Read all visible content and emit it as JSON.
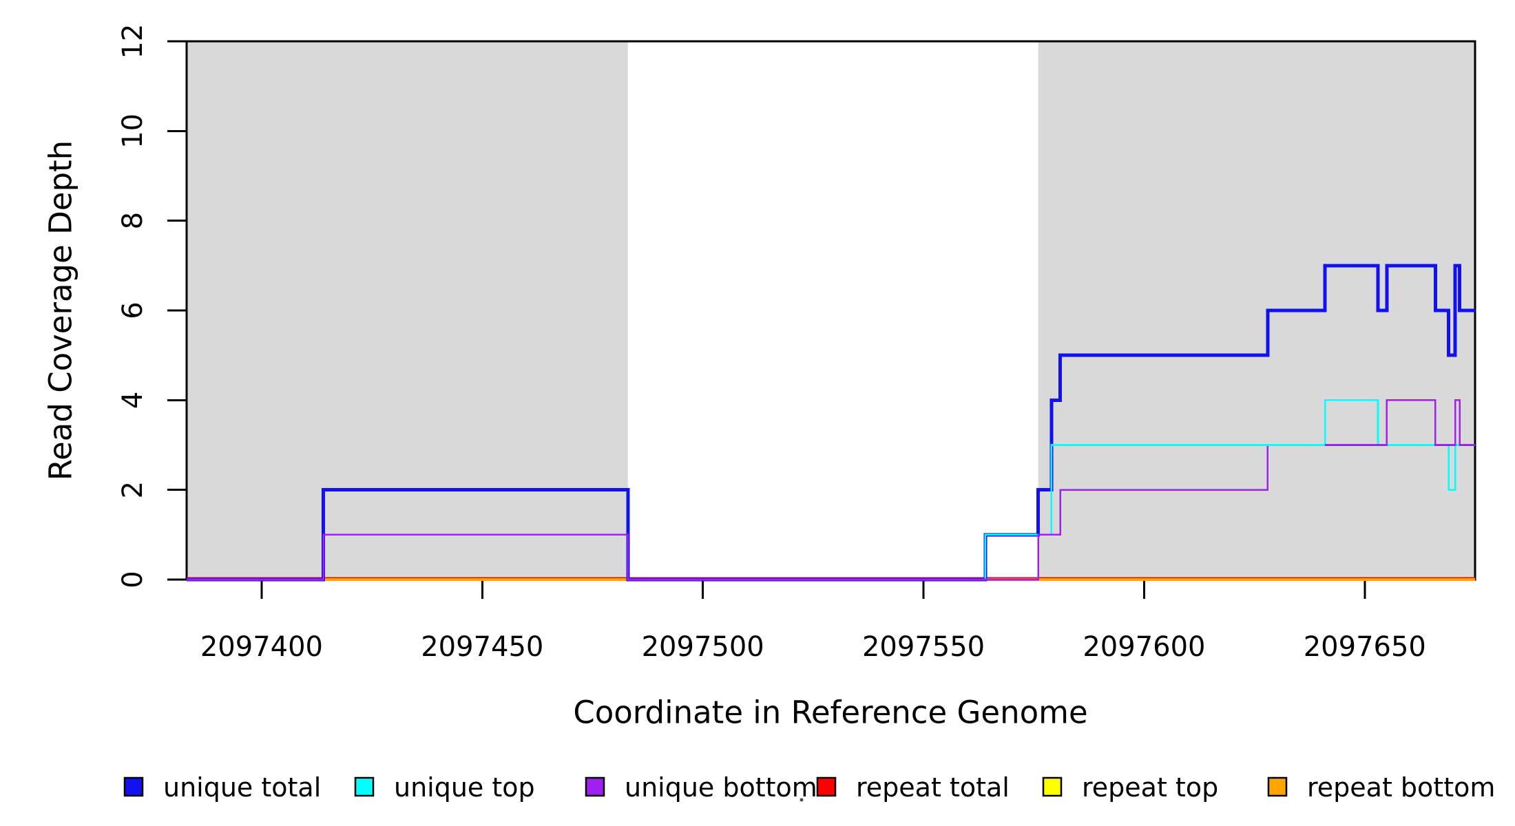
{
  "chart_data": {
    "type": "step_line",
    "title": "",
    "xlabel": "Coordinate in Reference Genome",
    "ylabel": "Read Coverage Depth",
    "x_range": [
      2097383,
      2097675
    ],
    "y_range": [
      0,
      12
    ],
    "x_ticks": [
      2097400,
      2097450,
      2097500,
      2097550,
      2097600,
      2097650
    ],
    "y_ticks": [
      0,
      2,
      4,
      6,
      8,
      10,
      12
    ],
    "grid": false,
    "legend_position": "bottom",
    "background_shading": {
      "meaning": "repeat-region",
      "color": "#D9D9D9",
      "regions": [
        [
          2097383,
          2097483
        ],
        [
          2097576,
          2097675
        ]
      ]
    },
    "series": [
      {
        "name": "repeat top",
        "color": "#FFFF00",
        "depth_steps": [
          [
            2097383,
            0
          ],
          [
            2097675,
            0
          ]
        ]
      },
      {
        "name": "repeat total",
        "color": "#FF0000",
        "depth_steps": [
          [
            2097383,
            0
          ],
          [
            2097675,
            0
          ]
        ]
      },
      {
        "name": "repeat bottom",
        "color": "#FFA500",
        "depth_steps": [
          [
            2097383,
            0
          ],
          [
            2097675,
            0
          ]
        ]
      },
      {
        "name": "unique total",
        "color": "#1212F0",
        "depth_steps": [
          [
            2097383,
            0
          ],
          [
            2097414,
            0
          ],
          [
            2097414,
            2
          ],
          [
            2097483,
            2
          ],
          [
            2097483,
            0
          ],
          [
            2097564,
            0
          ],
          [
            2097564,
            1
          ],
          [
            2097576,
            1
          ],
          [
            2097576,
            2
          ],
          [
            2097579,
            2
          ],
          [
            2097579,
            4
          ],
          [
            2097581,
            4
          ],
          [
            2097581,
            5
          ],
          [
            2097628,
            5
          ],
          [
            2097628,
            6
          ],
          [
            2097641,
            6
          ],
          [
            2097641,
            7
          ],
          [
            2097653,
            7
          ],
          [
            2097653,
            6
          ],
          [
            2097655,
            6
          ],
          [
            2097655,
            7
          ],
          [
            2097666,
            7
          ],
          [
            2097666,
            6
          ],
          [
            2097669,
            6
          ],
          [
            2097669,
            5
          ],
          [
            2097670.5,
            5
          ],
          [
            2097670.5,
            7
          ],
          [
            2097671.5,
            7
          ],
          [
            2097671.5,
            6
          ],
          [
            2097675,
            6
          ]
        ]
      },
      {
        "name": "unique top",
        "color": "#00FFFF",
        "depth_steps": [
          [
            2097383,
            0
          ],
          [
            2097414,
            0
          ],
          [
            2097414,
            1
          ],
          [
            2097483,
            1
          ],
          [
            2097483,
            0
          ],
          [
            2097564,
            0
          ],
          [
            2097564,
            1
          ],
          [
            2097579,
            1
          ],
          [
            2097579,
            3
          ],
          [
            2097641,
            3
          ],
          [
            2097641,
            4
          ],
          [
            2097653,
            4
          ],
          [
            2097653,
            3
          ],
          [
            2097669,
            3
          ],
          [
            2097669,
            2
          ],
          [
            2097670.5,
            2
          ],
          [
            2097670.5,
            3
          ],
          [
            2097675,
            3
          ]
        ]
      },
      {
        "name": "unique bottom",
        "color": "#A020F0",
        "depth_steps": [
          [
            2097383,
            0
          ],
          [
            2097414,
            0
          ],
          [
            2097414,
            1
          ],
          [
            2097483,
            1
          ],
          [
            2097483,
            0
          ],
          [
            2097576,
            0
          ],
          [
            2097576,
            1
          ],
          [
            2097581,
            1
          ],
          [
            2097581,
            2
          ],
          [
            2097628,
            2
          ],
          [
            2097628,
            3
          ],
          [
            2097655,
            3
          ],
          [
            2097655,
            4
          ],
          [
            2097666,
            4
          ],
          [
            2097666,
            3
          ],
          [
            2097670.5,
            3
          ],
          [
            2097670.5,
            4
          ],
          [
            2097671.5,
            4
          ],
          [
            2097671.5,
            3
          ],
          [
            2097675,
            3
          ]
        ]
      }
    ]
  },
  "legend": {
    "items": [
      {
        "label": "unique total",
        "color": "#1212F0"
      },
      {
        "label": "unique top",
        "color": "#00FFFF"
      },
      {
        "label": "unique bottom",
        "color": "#A020F0"
      },
      {
        "label": "repeat total",
        "color": "#FF0000"
      },
      {
        "label": "repeat top",
        "color": "#FFFF00"
      },
      {
        "label": "repeat bottom",
        "color": "#FFA500"
      }
    ]
  }
}
